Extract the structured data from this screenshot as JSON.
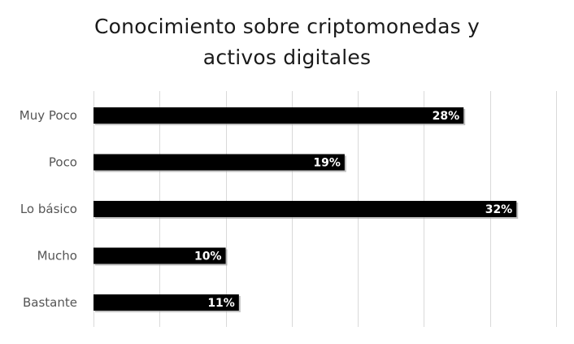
{
  "chart_data": {
    "type": "bar",
    "orientation": "horizontal",
    "title_lines": [
      "Conocimiento sobre criptomonedas y",
      "activos digitales"
    ],
    "categories": [
      "Muy Poco",
      "Poco",
      "Lo básico",
      "Mucho",
      "Bastante"
    ],
    "values": [
      28,
      19,
      32,
      10,
      11
    ],
    "value_labels": [
      "28%",
      "19%",
      "32%",
      "10%",
      "11%"
    ],
    "xlim": [
      0,
      35
    ],
    "grid": true,
    "bar_color": "#000000",
    "grid_color": "#d9d9d9"
  }
}
